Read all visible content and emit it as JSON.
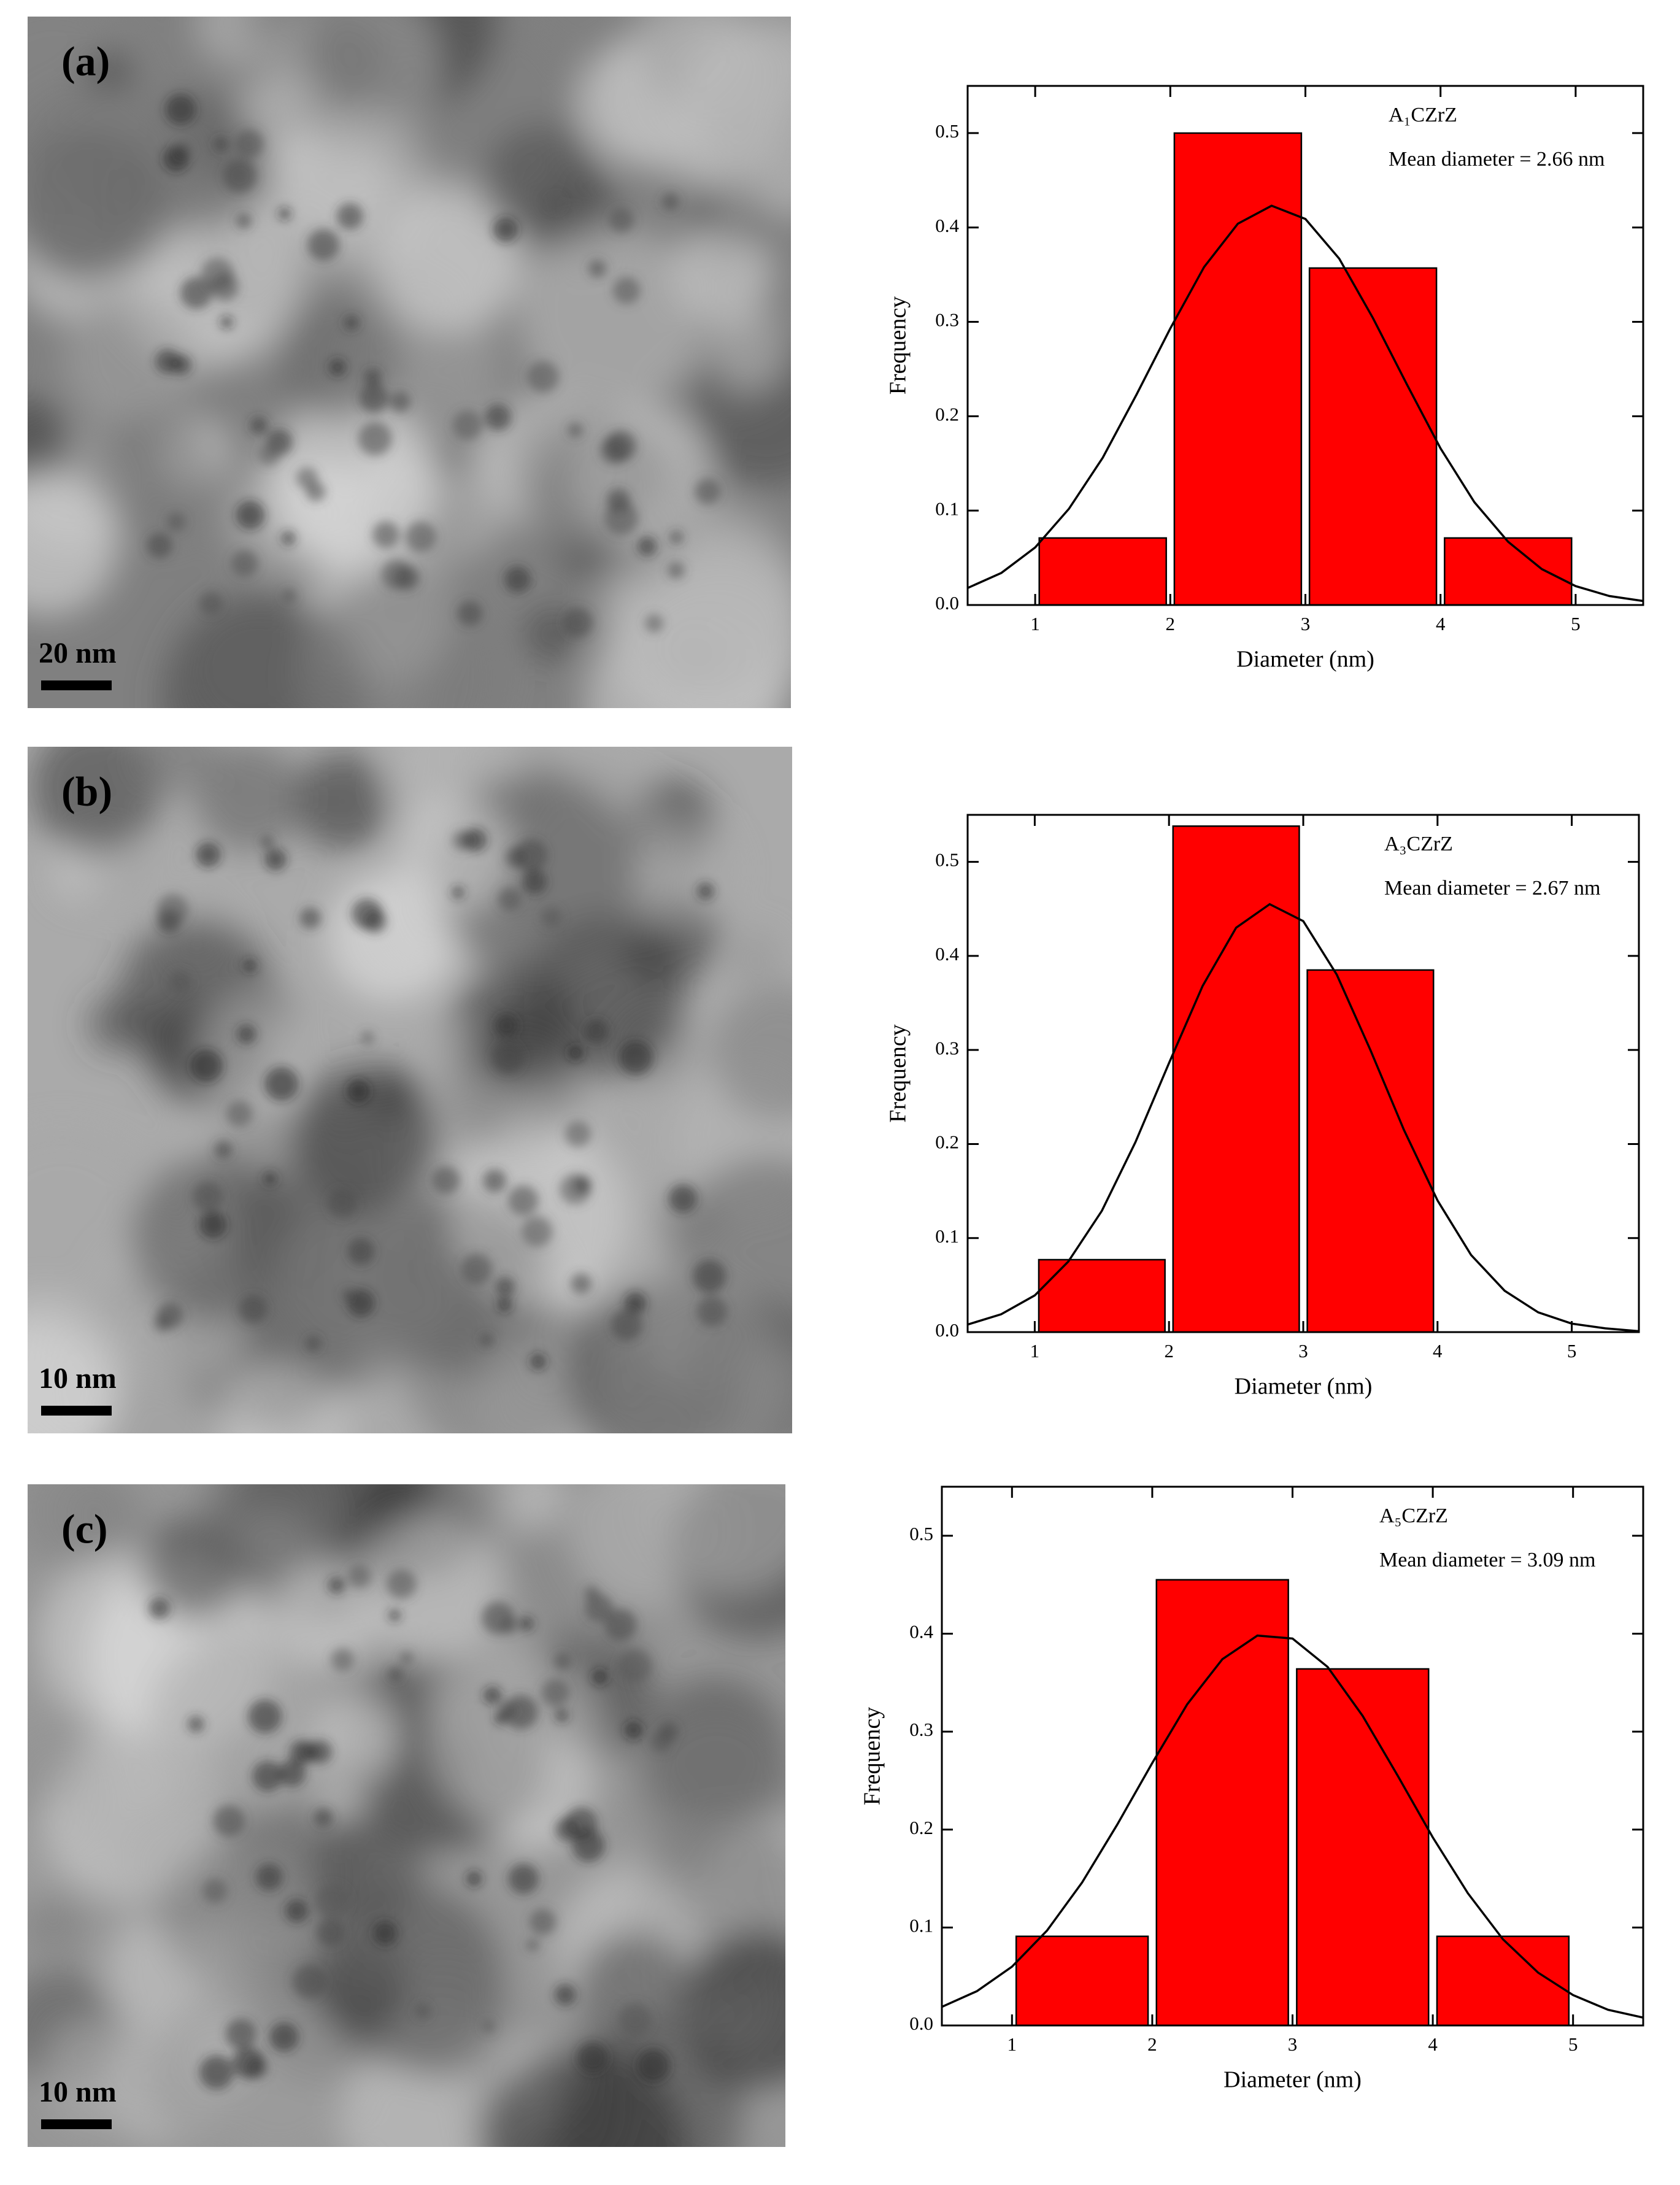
{
  "panels": [
    {
      "label": "(a)",
      "scale_bar": "20 nm"
    },
    {
      "label": "(b)",
      "scale_bar": "10 nm"
    },
    {
      "label": "(c)",
      "scale_bar": "10 nm"
    }
  ],
  "chart_data": [
    {
      "type": "histogram",
      "bins": [
        1,
        2,
        3,
        4,
        5
      ],
      "values": [
        0.071,
        0.5,
        0.357,
        0.071
      ],
      "color": "#ff0000",
      "fit": {
        "x": [
          0.5,
          0.75,
          1,
          1.25,
          1.5,
          1.75,
          2,
          2.25,
          2.5,
          2.75,
          3,
          3.25,
          3.5,
          3.75,
          4,
          4.25,
          4.5,
          4.75,
          5,
          5.25,
          5.5
        ],
        "values": [
          0.018,
          0.034,
          0.061,
          0.102,
          0.156,
          0.223,
          0.293,
          0.358,
          0.404,
          0.423,
          0.409,
          0.367,
          0.304,
          0.234,
          0.166,
          0.109,
          0.067,
          0.038,
          0.02,
          0.0095,
          0.0042
        ],
        "color": "#000000"
      },
      "annotations": [
        "A₁CZrZ",
        "Mean diameter = 2.66 nm"
      ],
      "x_label": "Diameter (nm)",
      "y_label": "Frequency",
      "xlim": [
        0.5,
        5.5
      ],
      "ylim": [
        0,
        0.55
      ],
      "xticks": [
        1,
        2,
        3,
        4,
        5
      ],
      "yticks": [
        {
          "value": 0,
          "label": "0.0"
        },
        0.1,
        0.2,
        0.3,
        0.4,
        0.5
      ]
    },
    {
      "type": "histogram",
      "bins": [
        1,
        2,
        3,
        4
      ],
      "values": [
        0.077,
        0.538,
        0.385
      ],
      "color": "#ff0000",
      "fit": {
        "x": [
          0.5,
          0.75,
          1,
          1.25,
          1.5,
          1.75,
          2,
          2.25,
          2.5,
          2.75,
          3,
          3.25,
          3.5,
          3.75,
          4,
          4.25,
          4.5,
          4.75,
          5,
          5.25,
          5.5
        ],
        "values": [
          0.008,
          0.019,
          0.039,
          0.075,
          0.129,
          0.202,
          0.286,
          0.368,
          0.43,
          0.455,
          0.437,
          0.38,
          0.3,
          0.215,
          0.14,
          0.082,
          0.044,
          0.021,
          0.009,
          0.004,
          0.001
        ],
        "color": "#000000"
      },
      "annotations": [
        "A₃CZrZ",
        "Mean diameter = 2.67 nm"
      ],
      "x_label": "Diameter (nm)",
      "y_label": "Frequency",
      "xlim": [
        0.5,
        5.5
      ],
      "ylim": [
        0,
        0.55
      ],
      "xticks": [
        1,
        2,
        3,
        4,
        5
      ],
      "yticks": [
        {
          "value": 0,
          "label": "0.0"
        },
        0.1,
        0.2,
        0.3,
        0.4,
        0.5
      ]
    },
    {
      "type": "histogram",
      "bins": [
        1,
        2,
        3,
        4,
        5
      ],
      "values": [
        0.091,
        0.455,
        0.364,
        0.091
      ],
      "color": "#ff0000",
      "fit": {
        "x": [
          0.5,
          0.75,
          1,
          1.25,
          1.5,
          1.75,
          2,
          2.25,
          2.5,
          2.75,
          3,
          3.25,
          3.5,
          3.75,
          4,
          4.25,
          4.5,
          4.75,
          5,
          5.25,
          5.5
        ],
        "values": [
          0.019,
          0.035,
          0.06,
          0.097,
          0.146,
          0.205,
          0.268,
          0.328,
          0.374,
          0.398,
          0.395,
          0.366,
          0.316,
          0.255,
          0.192,
          0.135,
          0.088,
          0.054,
          0.031,
          0.016,
          0.008
        ],
        "color": "#000000"
      },
      "annotations": [
        "A₅CZrZ",
        "Mean diameter = 3.09 nm"
      ],
      "x_label": "Diameter (nm)",
      "y_label": "Frequency",
      "xlim": [
        0.5,
        5.5
      ],
      "ylim": [
        0,
        0.55
      ],
      "xticks": [
        1,
        2,
        3,
        4,
        5
      ],
      "yticks": [
        {
          "value": 0,
          "label": "0.0"
        },
        0.1,
        0.2,
        0.3,
        0.4,
        0.5
      ]
    }
  ]
}
